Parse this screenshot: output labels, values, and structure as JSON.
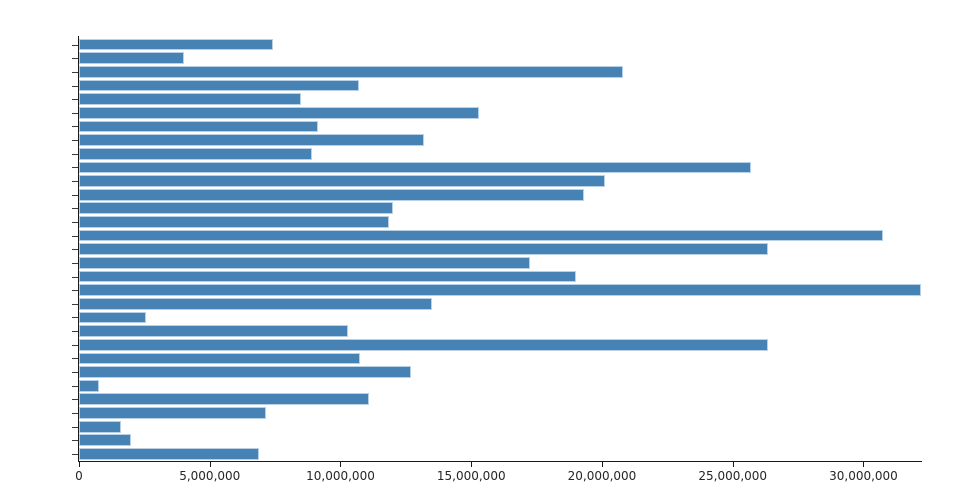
{
  "chart_data": {
    "type": "bar",
    "orientation": "horizontal",
    "title": "",
    "xlabel": "",
    "ylabel": "",
    "grid": false,
    "legend": null,
    "x_axis": {
      "min": 0,
      "max": 32200000,
      "tick_values": [
        0,
        5000000,
        10000000,
        15000000,
        20000000,
        25000000,
        30000000
      ],
      "tick_labels": [
        "0",
        "5,000,000",
        "10,000,000",
        "15,000,000",
        "20,000,000",
        "25,000,000",
        "30,000,000"
      ]
    },
    "y_axis": {
      "tick_labels_visible": false,
      "tick_count": 31
    },
    "values": [
      7400000,
      4000000,
      20800000,
      10700000,
      8500000,
      15300000,
      9150000,
      13200000,
      8900000,
      25700000,
      20100000,
      19300000,
      12000000,
      11850000,
      30750000,
      26350000,
      17250000,
      19000000,
      32200000,
      13500000,
      2550000,
      10300000,
      26350000,
      10750000,
      12700000,
      750000,
      11100000,
      7150000,
      1600000,
      2000000,
      6900000
    ],
    "colors": {
      "bar_fill": "#4683b4",
      "bar_edge": "#b8d1e6",
      "axis": "#1a1a1a",
      "tick_label": "#262626"
    }
  }
}
